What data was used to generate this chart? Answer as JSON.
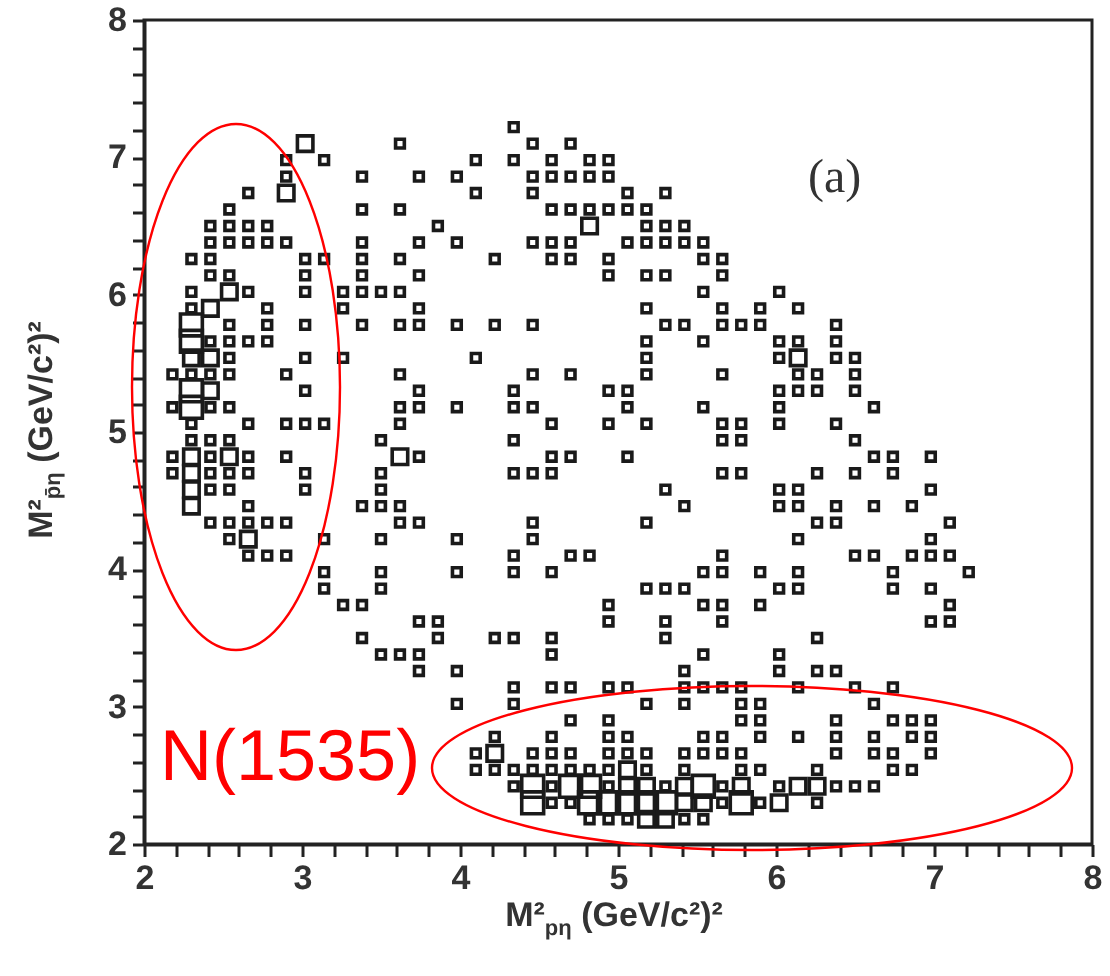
{
  "chart_data": {
    "type": "bubble",
    "marker": "square",
    "xlabel": "M²$_{pη}$ (GeV/c²)²",
    "ylabel": "M²$_{p̄η}$ (GeV/c²)²",
    "annotations": [
      "(a)",
      "N(1535)"
    ],
    "xlim": [
      2,
      8
    ],
    "ylim": [
      2,
      8
    ],
    "xticks": [
      2,
      {
        "value": 2.2,
        "label": null
      },
      {
        "value": 2.4,
        "label": null
      },
      {
        "value": 2.6,
        "label": null
      },
      {
        "value": 2.8,
        "label": null
      },
      3,
      {
        "value": 3.2,
        "label": null
      },
      {
        "value": 3.4,
        "label": null
      },
      {
        "value": 3.6,
        "label": null
      },
      {
        "value": 3.8,
        "label": null
      },
      4,
      {
        "value": 4.2,
        "label": null
      },
      {
        "value": 4.4,
        "label": null
      },
      {
        "value": 4.6,
        "label": null
      },
      {
        "value": 4.8,
        "label": null
      },
      5,
      {
        "value": 5.2,
        "label": null
      },
      {
        "value": 5.4,
        "label": null
      },
      {
        "value": 5.6,
        "label": null
      },
      {
        "value": 5.8,
        "label": null
      },
      6,
      {
        "value": 6.2,
        "label": null
      },
      {
        "value": 6.4,
        "label": null
      },
      {
        "value": 6.6,
        "label": null
      },
      {
        "value": 6.8,
        "label": null
      },
      7,
      {
        "value": 7.2,
        "label": null
      },
      {
        "value": 7.4,
        "label": null
      },
      {
        "value": 7.6,
        "label": null
      },
      {
        "value": 7.8,
        "label": null
      },
      8
    ],
    "yticks": [
      2,
      {
        "value": 2.2,
        "label": null
      },
      {
        "value": 2.4,
        "label": null
      },
      {
        "value": 2.6,
        "label": null
      },
      {
        "value": 2.8,
        "label": null
      },
      3,
      {
        "value": 3.2,
        "label": null
      },
      {
        "value": 3.4,
        "label": null
      },
      {
        "value": 3.6,
        "label": null
      },
      {
        "value": 3.8,
        "label": null
      },
      4,
      {
        "value": 4.2,
        "label": null
      },
      {
        "value": 4.4,
        "label": null
      },
      {
        "value": 4.6,
        "label": null
      },
      {
        "value": 4.8,
        "label": null
      },
      5,
      {
        "value": 5.2,
        "label": null
      },
      {
        "value": 5.4,
        "label": null
      },
      {
        "value": 5.6,
        "label": null
      },
      {
        "value": 5.8,
        "label": null
      },
      6,
      {
        "value": 6.2,
        "label": null
      },
      {
        "value": 6.4,
        "label": null
      },
      {
        "value": 6.6,
        "label": null
      },
      {
        "value": 6.8,
        "label": null
      },
      7,
      {
        "value": 7.2,
        "label": null
      },
      {
        "value": 7.4,
        "label": null
      },
      {
        "value": 7.6,
        "label": null
      },
      {
        "value": 7.8,
        "label": null
      },
      8
    ],
    "series": [
      {
        "color": "#1a1a1a",
        "x": [
          4.34,
          3.02,
          3.62,
          4.46,
          4.7,
          2.9,
          3.14,
          4.1,
          4.34,
          4.58,
          4.82,
          4.94,
          2.9,
          3.38,
          3.74,
          3.98,
          4.46,
          4.58,
          4.7,
          4.82,
          4.94,
          2.66,
          2.9,
          4.1,
          4.46,
          5.06,
          5.3,
          2.54,
          3.38,
          3.62,
          4.58,
          4.7,
          4.82,
          4.94,
          5.06,
          5.18,
          2.42,
          2.54,
          2.66,
          2.78,
          3.86,
          4.82,
          5.18,
          5.3,
          5.42,
          2.42,
          2.54,
          2.66,
          2.78,
          2.9,
          3.38,
          3.74,
          3.98,
          4.46,
          4.58,
          4.7,
          5.06,
          5.18,
          5.3,
          5.42,
          5.54,
          2.3,
          2.42,
          3.02,
          3.14,
          3.38,
          3.62,
          4.22,
          4.58,
          4.7,
          4.94,
          5.54,
          5.66,
          2.42,
          2.54,
          3.02,
          3.38,
          3.74,
          4.94,
          5.18,
          5.3,
          5.66,
          2.3,
          2.54,
          2.66,
          3.02,
          3.26,
          3.38,
          3.5,
          3.62,
          5.54,
          6.02,
          2.3,
          2.42,
          2.78,
          3.26,
          3.74,
          5.18,
          5.66,
          5.9,
          6.14,
          2.3,
          2.54,
          2.78,
          3.02,
          3.38,
          3.62,
          3.74,
          3.98,
          4.22,
          4.46,
          5.3,
          5.42,
          5.66,
          5.78,
          5.9,
          6.38,
          2.3,
          2.42,
          2.54,
          2.66,
          2.78,
          5.18,
          5.54,
          6.02,
          6.14,
          6.38,
          2.3,
          2.42,
          2.54,
          3.02,
          3.26,
          4.1,
          5.18,
          6.02,
          6.14,
          6.38,
          6.5,
          2.18,
          2.3,
          2.42,
          2.54,
          2.9,
          3.62,
          4.46,
          4.7,
          5.18,
          5.66,
          6.14,
          6.26,
          6.5,
          2.3,
          2.42,
          3.02,
          3.74,
          4.34,
          4.94,
          5.06,
          6.02,
          6.14,
          6.26,
          6.5,
          2.18,
          2.3,
          2.42,
          2.54,
          3.62,
          3.74,
          3.98,
          4.34,
          4.46,
          5.06,
          5.54,
          6.02,
          6.62,
          2.3,
          2.66,
          2.9,
          3.02,
          3.14,
          3.62,
          4.58,
          4.94,
          5.18,
          5.66,
          5.78,
          6.02,
          6.38,
          2.3,
          2.42,
          2.54,
          3.5,
          4.34,
          5.66,
          5.78,
          6.5,
          2.18,
          2.3,
          2.42,
          2.54,
          2.66,
          2.9,
          3.62,
          3.74,
          4.58,
          4.7,
          5.06,
          6.62,
          6.74,
          6.98,
          2.18,
          2.3,
          2.42,
          2.54,
          2.66,
          3.02,
          3.5,
          4.34,
          4.46,
          4.58,
          5.66,
          5.78,
          6.26,
          6.5,
          6.74,
          2.3,
          2.42,
          2.54,
          3.02,
          3.5,
          5.3,
          6.02,
          6.14,
          6.98,
          2.3,
          2.66,
          3.38,
          3.5,
          3.62,
          5.42,
          6.02,
          6.14,
          6.38,
          6.62,
          6.86,
          2.42,
          2.54,
          2.66,
          2.78,
          2.9,
          3.62,
          3.74,
          4.46,
          5.18,
          6.26,
          6.38,
          7.1,
          2.54,
          2.66,
          3.14,
          3.5,
          3.98,
          4.46,
          6.14,
          6.98,
          2.66,
          2.78,
          2.9,
          4.34,
          4.7,
          4.82,
          5.66,
          6.5,
          6.62,
          6.86,
          6.98,
          7.1,
          3.14,
          3.5,
          3.98,
          4.34,
          4.58,
          5.54,
          5.66,
          5.9,
          6.14,
          6.74,
          7.22,
          3.14,
          3.5,
          5.18,
          5.3,
          5.42,
          6.02,
          6.14,
          6.74,
          6.98,
          3.26,
          3.38,
          4.94,
          5.54,
          5.66,
          5.9,
          7.1,
          3.74,
          3.86,
          4.94,
          5.3,
          5.66,
          6.98,
          7.1,
          3.38,
          3.86,
          4.22,
          4.34,
          4.58,
          5.3,
          6.26,
          3.5,
          3.62,
          3.74,
          4.58,
          5.54,
          6.02,
          3.74,
          3.98,
          5.42,
          6.02,
          6.26,
          6.38,
          4.34,
          4.58,
          4.7,
          4.94,
          5.06,
          5.42,
          5.54,
          5.66,
          5.78,
          6.14,
          6.5,
          6.74,
          3.98,
          4.34,
          5.18,
          5.42,
          5.78,
          5.9,
          6.62,
          4.7,
          4.94,
          5.78,
          5.9,
          6.38,
          6.74,
          6.86,
          6.98,
          4.22,
          4.58,
          4.94,
          5.06,
          5.54,
          5.66,
          5.9,
          6.14,
          6.38,
          6.62,
          6.86,
          6.98,
          4.1,
          4.22,
          4.46,
          4.58,
          4.7,
          4.94,
          5.06,
          5.18,
          5.42,
          5.54,
          5.66,
          5.78,
          6.38,
          6.62,
          6.74,
          6.98,
          4.1,
          4.22,
          4.34,
          4.46,
          4.58,
          4.7,
          4.82,
          4.94,
          5.06,
          5.18,
          5.42,
          5.78,
          5.9,
          6.26,
          6.74,
          6.86,
          4.34,
          4.46,
          4.58,
          4.7,
          4.82,
          4.94,
          5.06,
          5.18,
          5.3,
          5.42,
          5.54,
          5.66,
          5.78,
          6.02,
          6.14,
          6.26,
          6.38,
          6.5,
          6.62,
          4.46,
          4.58,
          4.7,
          4.82,
          4.94,
          5.06,
          5.18,
          5.3,
          5.42,
          5.54,
          5.66,
          5.78,
          5.9,
          6.02,
          6.26,
          4.82,
          4.94,
          5.06,
          5.18,
          5.3,
          5.42,
          5.54
        ],
        "values": [
          7.22,
          7.1,
          7.1,
          7.1,
          7.1,
          6.98,
          6.98,
          6.98,
          6.98,
          6.98,
          6.98,
          6.98,
          6.86,
          6.86,
          6.86,
          6.86,
          6.86,
          6.86,
          6.86,
          6.86,
          6.86,
          6.74,
          6.74,
          6.74,
          6.74,
          6.74,
          6.74,
          6.62,
          6.62,
          6.62,
          6.62,
          6.62,
          6.62,
          6.62,
          6.62,
          6.62,
          6.5,
          6.5,
          6.5,
          6.5,
          6.5,
          6.5,
          6.5,
          6.5,
          6.5,
          6.38,
          6.38,
          6.38,
          6.38,
          6.38,
          6.38,
          6.38,
          6.38,
          6.38,
          6.38,
          6.38,
          6.38,
          6.38,
          6.38,
          6.38,
          6.38,
          6.26,
          6.26,
          6.26,
          6.26,
          6.26,
          6.26,
          6.26,
          6.26,
          6.26,
          6.26,
          6.26,
          6.26,
          6.14,
          6.14,
          6.14,
          6.14,
          6.14,
          6.14,
          6.14,
          6.14,
          6.14,
          6.02,
          6.02,
          6.02,
          6.02,
          6.02,
          6.02,
          6.02,
          6.02,
          6.02,
          6.02,
          5.9,
          5.9,
          5.9,
          5.9,
          5.9,
          5.9,
          5.9,
          5.9,
          5.9,
          5.78,
          5.78,
          5.78,
          5.78,
          5.78,
          5.78,
          5.78,
          5.78,
          5.78,
          5.78,
          5.78,
          5.78,
          5.78,
          5.78,
          5.78,
          5.78,
          5.66,
          5.66,
          5.66,
          5.66,
          5.66,
          5.66,
          5.66,
          5.66,
          5.66,
          5.66,
          5.54,
          5.54,
          5.54,
          5.54,
          5.54,
          5.54,
          5.54,
          5.54,
          5.54,
          5.54,
          5.54,
          5.42,
          5.42,
          5.42,
          5.42,
          5.42,
          5.42,
          5.42,
          5.42,
          5.42,
          5.42,
          5.42,
          5.42,
          5.42,
          5.3,
          5.3,
          5.3,
          5.3,
          5.3,
          5.3,
          5.3,
          5.3,
          5.3,
          5.3,
          5.3,
          5.18,
          5.18,
          5.18,
          5.18,
          5.18,
          5.18,
          5.18,
          5.18,
          5.18,
          5.18,
          5.18,
          5.18,
          5.18,
          5.06,
          5.06,
          5.06,
          5.06,
          5.06,
          5.06,
          5.06,
          5.06,
          5.06,
          5.06,
          5.06,
          5.06,
          5.06,
          4.94,
          4.94,
          4.94,
          4.94,
          4.94,
          4.94,
          4.94,
          4.94,
          4.82,
          4.82,
          4.82,
          4.82,
          4.82,
          4.82,
          4.82,
          4.82,
          4.82,
          4.82,
          4.82,
          4.82,
          4.82,
          4.82,
          4.7,
          4.7,
          4.7,
          4.7,
          4.7,
          4.7,
          4.7,
          4.7,
          4.7,
          4.7,
          4.7,
          4.7,
          4.7,
          4.7,
          4.7,
          4.58,
          4.58,
          4.58,
          4.58,
          4.58,
          4.58,
          4.58,
          4.58,
          4.58,
          4.46,
          4.46,
          4.46,
          4.46,
          4.46,
          4.46,
          4.46,
          4.46,
          4.46,
          4.46,
          4.46,
          4.34,
          4.34,
          4.34,
          4.34,
          4.34,
          4.34,
          4.34,
          4.34,
          4.34,
          4.34,
          4.34,
          4.34,
          4.22,
          4.22,
          4.22,
          4.22,
          4.22,
          4.22,
          4.22,
          4.22,
          4.1,
          4.1,
          4.1,
          4.1,
          4.1,
          4.1,
          4.1,
          4.1,
          4.1,
          4.1,
          4.1,
          4.1,
          3.98,
          3.98,
          3.98,
          3.98,
          3.98,
          3.98,
          3.98,
          3.98,
          3.98,
          3.98,
          3.98,
          3.86,
          3.86,
          3.86,
          3.86,
          3.86,
          3.86,
          3.86,
          3.86,
          3.86,
          3.74,
          3.74,
          3.74,
          3.74,
          3.74,
          3.74,
          3.74,
          3.62,
          3.62,
          3.62,
          3.62,
          3.62,
          3.62,
          3.62,
          3.5,
          3.5,
          3.5,
          3.5,
          3.5,
          3.5,
          3.5,
          3.38,
          3.38,
          3.38,
          3.38,
          3.38,
          3.38,
          3.26,
          3.26,
          3.26,
          3.26,
          3.26,
          3.26,
          3.14,
          3.14,
          3.14,
          3.14,
          3.14,
          3.14,
          3.14,
          3.14,
          3.14,
          3.14,
          3.14,
          3.14,
          3.02,
          3.02,
          3.02,
          3.02,
          3.02,
          3.02,
          3.02,
          2.9,
          2.9,
          2.9,
          2.9,
          2.9,
          2.9,
          2.9,
          2.9,
          2.78,
          2.78,
          2.78,
          2.78,
          2.78,
          2.78,
          2.78,
          2.78,
          2.78,
          2.78,
          2.78,
          2.78,
          2.66,
          2.66,
          2.66,
          2.66,
          2.66,
          2.66,
          2.66,
          2.66,
          2.66,
          2.66,
          2.66,
          2.66,
          2.66,
          2.66,
          2.66,
          2.66,
          2.54,
          2.54,
          2.54,
          2.54,
          2.54,
          2.54,
          2.54,
          2.54,
          2.54,
          2.54,
          2.54,
          2.54,
          2.54,
          2.54,
          2.54,
          2.54,
          2.42,
          2.42,
          2.42,
          2.42,
          2.42,
          2.42,
          2.42,
          2.42,
          2.42,
          2.42,
          2.42,
          2.42,
          2.42,
          2.42,
          2.42,
          2.42,
          2.42,
          2.42,
          2.42,
          2.3,
          2.3,
          2.3,
          2.3,
          2.3,
          2.3,
          2.3,
          2.3,
          2.3,
          2.3,
          2.3,
          2.3,
          2.3,
          2.3,
          2.3,
          2.18,
          2.18,
          2.18,
          2.18,
          2.18,
          2.18,
          2.18
        ],
        "sizes": [
          0.16,
          0.5,
          0.16,
          0.16,
          0.16,
          0.16,
          0.16,
          0.16,
          0.16,
          0.16,
          0.16,
          0.16,
          0.16,
          0.16,
          0.16,
          0.16,
          0.16,
          0.16,
          0.16,
          0.16,
          0.16,
          0.16,
          0.5,
          0.16,
          0.16,
          0.16,
          0.16,
          0.16,
          0.16,
          0.16,
          0.16,
          0.16,
          0.16,
          0.16,
          0.16,
          0.16,
          0.16,
          0.16,
          0.16,
          0.16,
          0.16,
          0.5,
          0.16,
          0.16,
          0.16,
          0.16,
          0.16,
          0.16,
          0.16,
          0.16,
          0.16,
          0.16,
          0.16,
          0.16,
          0.16,
          0.16,
          0.16,
          0.16,
          0.16,
          0.16,
          0.16,
          0.16,
          0.16,
          0.16,
          0.16,
          0.16,
          0.16,
          0.16,
          0.16,
          0.16,
          0.16,
          0.16,
          0.16,
          0.16,
          0.16,
          0.16,
          0.16,
          0.16,
          0.16,
          0.16,
          0.16,
          0.16,
          0.16,
          0.5,
          0.16,
          0.16,
          0.16,
          0.16,
          0.16,
          0.16,
          0.16,
          0.16,
          0.16,
          0.5,
          0.16,
          0.16,
          0.16,
          0.16,
          0.16,
          0.16,
          0.16,
          1,
          0.16,
          0.16,
          0.16,
          0.16,
          0.16,
          0.16,
          0.16,
          0.16,
          0.16,
          0.16,
          0.16,
          0.16,
          0.16,
          0.16,
          0.16,
          1,
          0.16,
          0.16,
          0.16,
          0.16,
          0.16,
          0.16,
          0.16,
          0.16,
          0.16,
          0.5,
          0.5,
          0.16,
          0.16,
          0.16,
          0.16,
          0.16,
          0.16,
          0.5,
          0.16,
          0.16,
          0.16,
          0.16,
          0.16,
          0.16,
          0.16,
          0.16,
          0.16,
          0.16,
          0.16,
          0.16,
          0.16,
          0.16,
          0.16,
          1,
          0.5,
          0.16,
          0.16,
          0.16,
          0.16,
          0.16,
          0.16,
          0.16,
          0.16,
          0.16,
          0.16,
          1,
          0.16,
          0.16,
          0.16,
          0.16,
          0.16,
          0.16,
          0.16,
          0.16,
          0.16,
          0.16,
          0.16,
          0.16,
          0.16,
          0.16,
          0.16,
          0.16,
          0.16,
          0.16,
          0.16,
          0.16,
          0.16,
          0.16,
          0.16,
          0.16,
          0.16,
          0.16,
          0.16,
          0.16,
          0.16,
          0.16,
          0.16,
          0.16,
          0.16,
          0.5,
          0.16,
          0.5,
          0.16,
          0.16,
          0.5,
          0.16,
          0.16,
          0.16,
          0.16,
          0.16,
          0.16,
          0.16,
          0.16,
          0.5,
          0.16,
          0.16,
          0.16,
          0.16,
          0.16,
          0.16,
          0.16,
          0.16,
          0.16,
          0.16,
          0.16,
          0.16,
          0.16,
          0.5,
          0.16,
          0.16,
          0.16,
          0.16,
          0.16,
          0.16,
          0.16,
          0.16,
          0.5,
          0.16,
          0.16,
          0.16,
          0.16,
          0.16,
          0.16,
          0.16,
          0.16,
          0.16,
          0.16,
          0.16,
          0.16,
          0.16,
          0.16,
          0.16,
          0.16,
          0.16,
          0.16,
          0.16,
          0.16,
          0.16,
          0.16,
          0.16,
          0.5,
          0.16,
          0.16,
          0.16,
          0.16,
          0.16,
          0.16,
          0.16,
          0.16,
          0.16,
          0.16,
          0.16,
          0.16,
          0.16,
          0.16,
          0.16,
          0.16,
          0.16,
          0.16,
          0.16,
          0.16,
          0.16,
          0.16,
          0.16,
          0.16,
          0.16,
          0.16,
          0.16,
          0.16,
          0.16,
          0.16,
          0.16,
          0.16,
          0.16,
          0.16,
          0.16,
          0.16,
          0.16,
          0.16,
          0.16,
          0.16,
          0.16,
          0.16,
          0.16,
          0.16,
          0.16,
          0.16,
          0.16,
          0.16,
          0.16,
          0.16,
          0.16,
          0.16,
          0.16,
          0.16,
          0.16,
          0.16,
          0.16,
          0.16,
          0.16,
          0.16,
          0.16,
          0.16,
          0.16,
          0.16,
          0.16,
          0.16,
          0.16,
          0.16,
          0.16,
          0.16,
          0.16,
          0.16,
          0.16,
          0.16,
          0.16,
          0.16,
          0.16,
          0.16,
          0.16,
          0.16,
          0.16,
          0.16,
          0.16,
          0.16,
          0.16,
          0.16,
          0.16,
          0.16,
          0.16,
          0.16,
          0.16,
          0.16,
          0.16,
          0.16,
          0.16,
          0.16,
          0.16,
          0.16,
          0.16,
          0.16,
          0.16,
          0.16,
          0.16,
          0.16,
          0.16,
          0.16,
          0.16,
          0.16,
          0.16,
          0.16,
          0.16,
          0.5,
          0.16,
          0.16,
          0.16,
          0.16,
          0.16,
          0.16,
          0.16,
          0.16,
          0.16,
          0.16,
          0.16,
          0.16,
          0.16,
          0.16,
          0.16,
          0.16,
          0.16,
          0.16,
          0.16,
          0.16,
          0.16,
          0.16,
          0.5,
          0.16,
          0.16,
          0.16,
          0.16,
          0.16,
          0.16,
          0.16,
          0.16,
          1,
          0.16,
          1,
          1,
          0.16,
          0.5,
          0.5,
          0.16,
          0.5,
          1,
          0.16,
          0.5,
          0.16,
          0.5,
          0.5,
          0.16,
          0.16,
          0.16,
          1,
          0.16,
          0.16,
          1,
          1,
          1,
          1,
          1,
          0.5,
          0.5,
          0.16,
          1,
          0.16,
          0.5,
          0.16,
          0.16,
          0.16,
          0.16,
          0.5,
          0.5,
          0.16,
          0.16
        ]
      }
    ]
  }
}
